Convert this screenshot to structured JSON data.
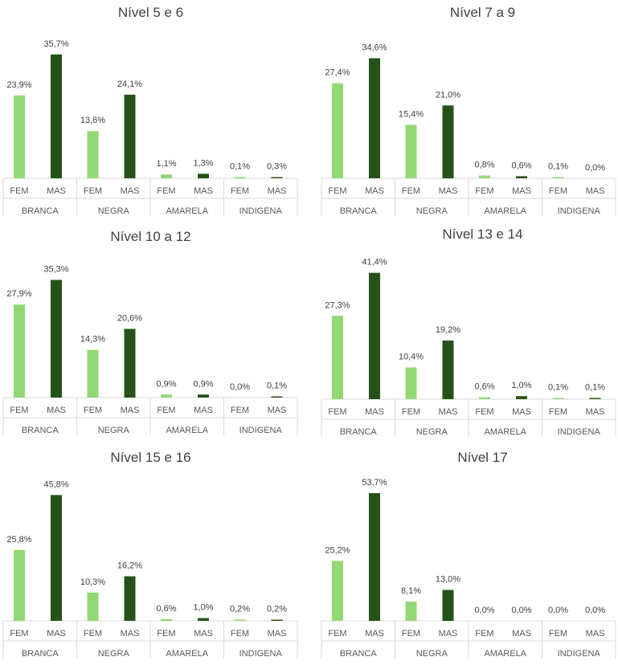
{
  "colors": {
    "fem": "#92d976",
    "mas": "#255219",
    "axis": "#d9d9d9",
    "text": "#404040"
  },
  "chart_data": [
    {
      "type": "bar",
      "title": "Nível 5 e 6",
      "groups": [
        "BRANCA",
        "NEGRA",
        "AMARELA",
        "INDIGENA"
      ],
      "categories": [
        "FEM",
        "MAS"
      ],
      "values": [
        23.9,
        35.7,
        13.6,
        24.1,
        1.1,
        1.3,
        0.1,
        0.3
      ],
      "labels": [
        "23,9%",
        "35,7%",
        "13,6%",
        "24,1%",
        "1,1%",
        "1,3%",
        "0,1%",
        "0,3%"
      ]
    },
    {
      "type": "bar",
      "title": "Nível 7 a 9",
      "groups": [
        "BRANCA",
        "NEGRA",
        "AMARELA",
        "INDIGENA"
      ],
      "categories": [
        "FEM",
        "MAS"
      ],
      "values": [
        27.4,
        34.6,
        15.4,
        21.0,
        0.8,
        0.6,
        0.1,
        0.0
      ],
      "labels": [
        "27,4%",
        "34,6%",
        "15,4%",
        "21,0%",
        "0,8%",
        "0,6%",
        "0,1%",
        "0,0%"
      ]
    },
    {
      "type": "bar",
      "title": "Nível 10 a 12",
      "groups": [
        "BRANCA",
        "NEGRA",
        "AMARELA",
        "INDIGENA"
      ],
      "categories": [
        "FEM",
        "MAS"
      ],
      "values": [
        27.9,
        35.3,
        14.3,
        20.6,
        0.9,
        0.9,
        0.0,
        0.1
      ],
      "labels": [
        "27,9%",
        "35,3%",
        "14,3%",
        "20,6%",
        "0,9%",
        "0,9%",
        "0,0%",
        "0,1%"
      ]
    },
    {
      "type": "bar",
      "title": "Nível 13 e 14",
      "groups": [
        "BRANCA",
        "NEGRA",
        "AMARELA",
        "INDIGENA"
      ],
      "categories": [
        "FEM",
        "MAS"
      ],
      "values": [
        27.3,
        41.4,
        10.4,
        19.2,
        0.6,
        1.0,
        0.1,
        0.1
      ],
      "labels": [
        "27,3%",
        "41,4%",
        "10,4%",
        "19,2%",
        "0,6%",
        "1,0%",
        "0,1%",
        "0,1%"
      ]
    },
    {
      "type": "bar",
      "title": "Nível 15 e 16",
      "groups": [
        "BRANCA",
        "NEGRA",
        "AMARELA",
        "INDIGENA"
      ],
      "categories": [
        "FEM",
        "MAS"
      ],
      "values": [
        25.8,
        45.8,
        10.3,
        16.2,
        0.6,
        1.0,
        0.2,
        0.2
      ],
      "labels": [
        "25,8%",
        "45,8%",
        "10,3%",
        "16,2%",
        "0,6%",
        "1,0%",
        "0,2%",
        "0,2%"
      ]
    },
    {
      "type": "bar",
      "title": "Nível 17",
      "groups": [
        "BRANCA",
        "NEGRA",
        "AMARELA",
        "INDIGENA"
      ],
      "categories": [
        "FEM",
        "MAS"
      ],
      "values": [
        25.2,
        53.7,
        8.1,
        13.0,
        0.0,
        0.0,
        0.0,
        0.0
      ],
      "labels": [
        "25,2%",
        "53,7%",
        "8,1%",
        "13,0%",
        "0,0%",
        "0,0%",
        "0,0%",
        "0,0%"
      ]
    }
  ]
}
